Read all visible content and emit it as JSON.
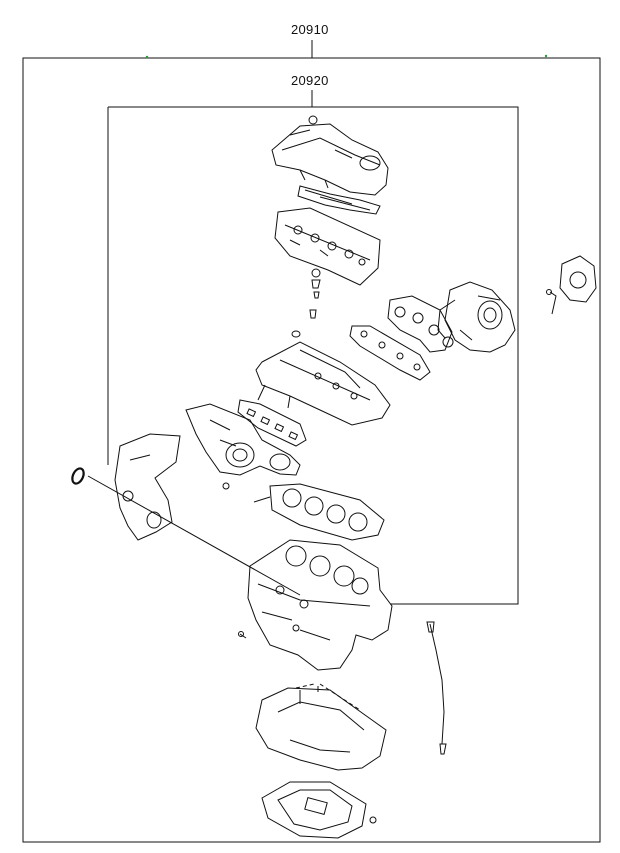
{
  "diagram": {
    "outer_kit_number": "20910",
    "inner_kit_number": "20920",
    "accent_color": "#2e9d3a",
    "line_color": "#111111",
    "parts": [
      "valve-cover",
      "valve-cover-gasket",
      "cylinder-head-carrier",
      "camshaft-seals",
      "turbocharger",
      "turbo-gasket",
      "exhaust-manifold-gasket",
      "cylinder-head",
      "intake-manifold",
      "intake-manifold-gasket",
      "head-gasket",
      "timing-cover",
      "oring",
      "engine-block",
      "oil-dipstick",
      "oil-pan-upper",
      "oil-pan-lower",
      "water-pump"
    ]
  }
}
